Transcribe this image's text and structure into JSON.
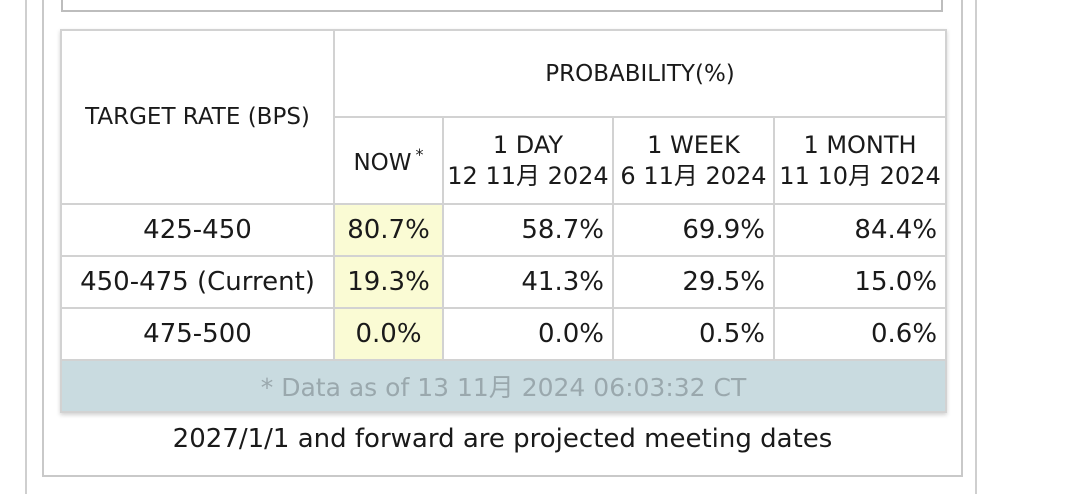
{
  "table": {
    "target_rate_header": "TARGET RATE (BPS)",
    "probability_header": "PROBABILITY(%)",
    "columns": [
      {
        "label": "NOW",
        "date": ""
      },
      {
        "label": "1 DAY",
        "date": "12 11月 2024"
      },
      {
        "label": "1 WEEK",
        "date": "6 11月 2024"
      },
      {
        "label": "1 MONTH",
        "date": "11 10月 2024"
      }
    ],
    "now_marker": "*",
    "rows": [
      {
        "range": "425-450",
        "values": [
          "80.7%",
          "58.7%",
          "69.9%",
          "84.4%"
        ]
      },
      {
        "range": "450-475 (Current)",
        "values": [
          "19.3%",
          "41.3%",
          "29.5%",
          "15.0%"
        ]
      },
      {
        "range": "475-500",
        "values": [
          "0.0%",
          "0.0%",
          "0.5%",
          "0.6%"
        ]
      }
    ],
    "footer": "* Data as of 13 11月 2024 06:03:32 CT"
  },
  "note": "2027/1/1 and forward are projected meeting dates",
  "colors": {
    "now_column_bg": "#fafbd4",
    "footer_bg": "#c9dbe0",
    "border": "#d2d2d2"
  }
}
